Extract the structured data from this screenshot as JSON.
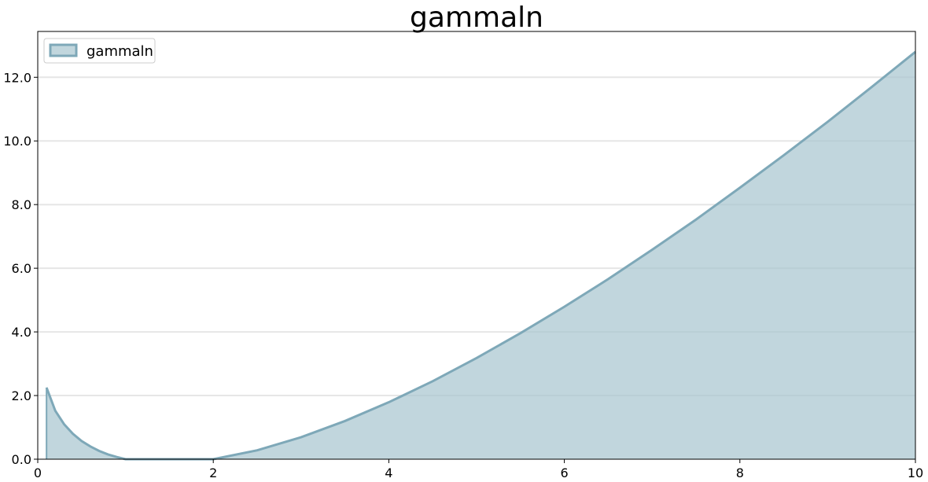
{
  "chart_data": {
    "type": "area",
    "title": "gammaln",
    "xlabel": "",
    "ylabel": "",
    "xlim": [
      0,
      10
    ],
    "ylim": [
      0,
      13.44
    ],
    "x_ticks": [
      0,
      2,
      4,
      6,
      8,
      10
    ],
    "x_tick_labels": [
      "0",
      "2",
      "4",
      "6",
      "8",
      "10"
    ],
    "y_ticks": [
      0,
      2,
      4,
      6,
      8,
      10,
      12
    ],
    "y_tick_labels": [
      "0.0",
      "2.0",
      "4.0",
      "6.0",
      "8.0",
      "10.0",
      "12.0"
    ],
    "grid": "horizontal",
    "legend": "top-left",
    "series": [
      {
        "name": "gammaln",
        "color": "#7ea8b8",
        "fill": "#a7c4ce",
        "x": [
          0.1,
          0.2,
          0.3,
          0.4,
          0.5,
          0.6,
          0.7,
          0.8,
          0.9,
          1.0,
          1.5,
          2.0,
          2.5,
          3.0,
          3.5,
          4.0,
          4.5,
          5.0,
          5.5,
          6.0,
          6.5,
          7.0,
          7.5,
          8.0,
          8.5,
          9.0,
          9.5,
          10.0
        ],
        "y": [
          2.25,
          1.52,
          1.1,
          0.8,
          0.57,
          0.4,
          0.26,
          0.15,
          0.07,
          0.0,
          0.0,
          0.0,
          0.28,
          0.69,
          1.2,
          1.79,
          2.45,
          3.18,
          3.96,
          4.79,
          5.66,
          6.58,
          7.53,
          8.53,
          9.55,
          10.6,
          11.69,
          12.8
        ]
      }
    ]
  }
}
